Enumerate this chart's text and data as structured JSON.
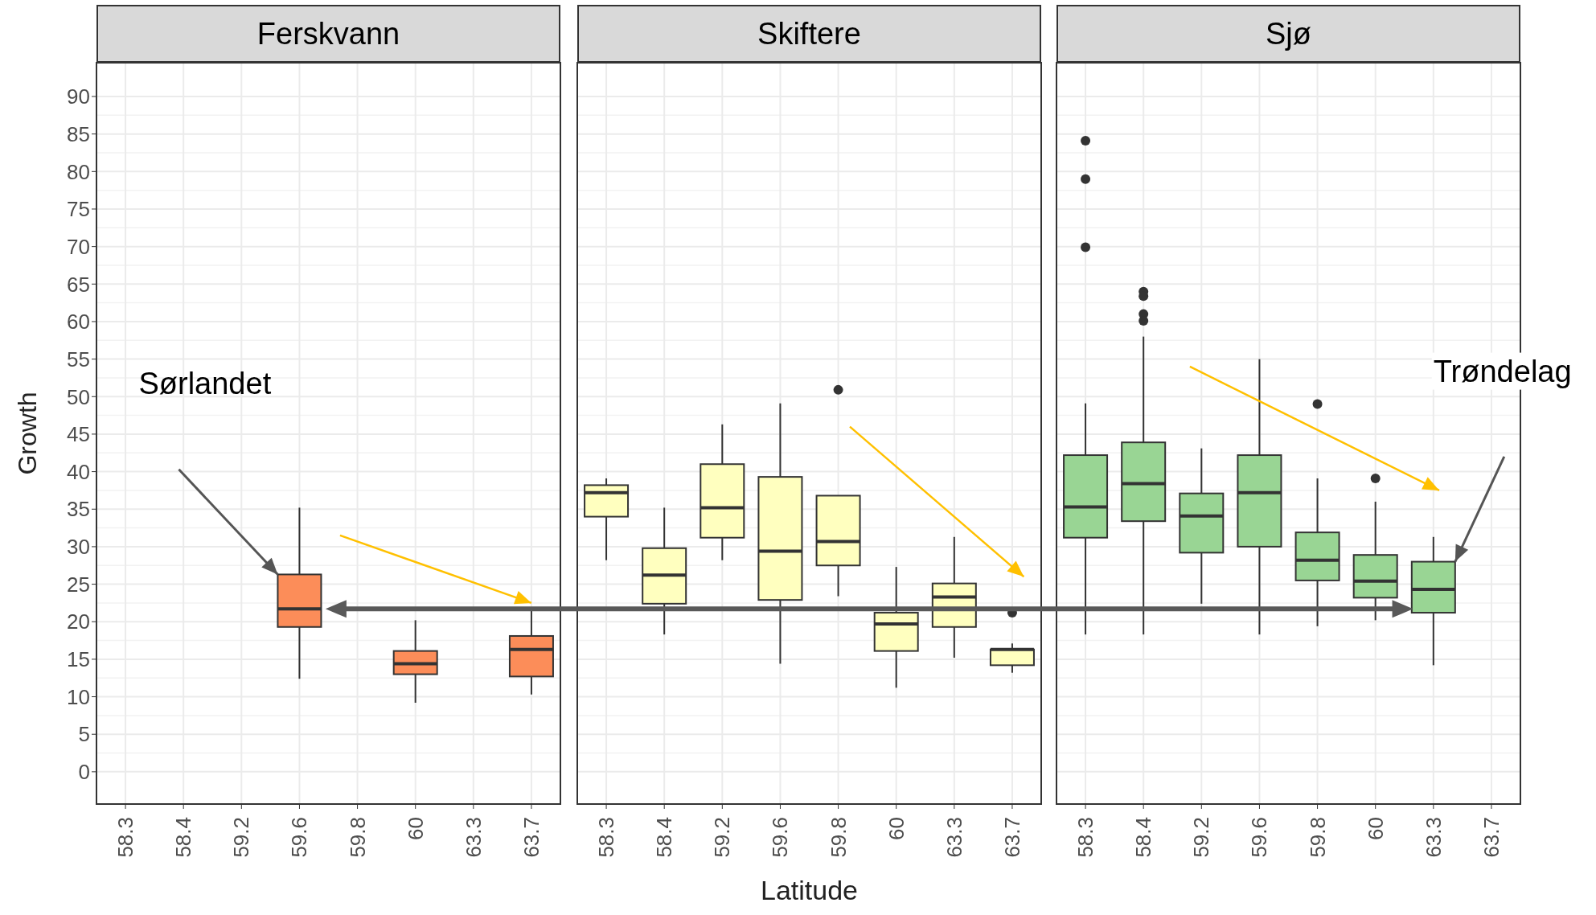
{
  "chart_data": [
    {
      "type": "box",
      "title": "Ferskvann",
      "ylabel": "Growth",
      "color": "#fc8d59",
      "grid": true,
      "ylim": [
        -4.3,
        94.5
      ],
      "yticks": [
        0,
        5,
        10,
        15,
        20,
        25,
        30,
        35,
        40,
        45,
        50,
        55,
        60,
        65,
        70,
        75,
        80,
        85,
        90
      ],
      "categories": [
        "58.3",
        "58.4",
        "59.2",
        "59.6",
        "59.8",
        "60",
        "63.3",
        "63.7"
      ],
      "boxes": [
        null,
        null,
        null,
        {
          "low": 12.4,
          "q1": 19.3,
          "median": 21.7,
          "q3": 26.3,
          "high": 35.2
        },
        null,
        {
          "low": 9.2,
          "q1": 13.0,
          "median": 14.4,
          "q3": 16.1,
          "high": 20.2
        },
        null,
        {
          "low": 10.3,
          "q1": 12.7,
          "median": 16.3,
          "q3": 18.1,
          "high": 21.8
        }
      ],
      "annotations": [
        "Sørlandet"
      ]
    },
    {
      "type": "box",
      "title": "Skiftere",
      "xlabel": "Latitude",
      "color": "#ffffbf",
      "grid": true,
      "tick_labels": "x",
      "ylim": [
        -4.3,
        94.5
      ],
      "yticks": [
        0,
        5,
        10,
        15,
        20,
        25,
        30,
        35,
        40,
        45,
        50,
        55,
        60,
        65,
        70,
        75,
        80,
        85,
        90
      ],
      "categories": [
        "58.3",
        "58.4",
        "59.2",
        "59.6",
        "59.8",
        "60",
        "63.3",
        "63.7"
      ],
      "boxes": [
        {
          "low": 28.2,
          "q1": 34.0,
          "median": 37.2,
          "q3": 38.2,
          "high": 39.1
        },
        {
          "low": 18.3,
          "q1": 22.4,
          "median": 26.2,
          "q3": 29.8,
          "high": 35.2
        },
        {
          "low": 28.2,
          "q1": 31.2,
          "median": 35.2,
          "q3": 41.0,
          "high": 46.3
        },
        {
          "low": 14.4,
          "q1": 22.9,
          "median": 29.4,
          "q3": 39.3,
          "high": 49.1
        },
        {
          "low": 23.4,
          "q1": 27.5,
          "median": 30.7,
          "q3": 36.8,
          "high": 36.8,
          "outliers": [
            50.9
          ]
        },
        {
          "low": 11.2,
          "q1": 16.1,
          "median": 19.7,
          "q3": 21.2,
          "high": 27.3
        },
        {
          "low": 15.2,
          "q1": 19.3,
          "median": 23.3,
          "q3": 25.1,
          "high": 31.3
        },
        {
          "low": 13.2,
          "q1": 14.2,
          "median": 16.3,
          "q3": 16.3,
          "high": 17.1,
          "outliers": [
            21.2
          ]
        }
      ]
    },
    {
      "type": "box",
      "title": "Sjø",
      "color": "#99d594",
      "grid": true,
      "tick_labels": "x",
      "ylim": [
        -4.3,
        94.5
      ],
      "yticks": [
        0,
        5,
        10,
        15,
        20,
        25,
        30,
        35,
        40,
        45,
        50,
        55,
        60,
        65,
        70,
        75,
        80,
        85,
        90
      ],
      "categories": [
        "58.3",
        "58.4",
        "59.2",
        "59.6",
        "59.8",
        "60",
        "63.3",
        "63.7"
      ],
      "boxes": [
        {
          "low": 18.3,
          "q1": 31.2,
          "median": 35.3,
          "q3": 42.2,
          "high": 49.1,
          "outliers": [
            84.1,
            79.0,
            69.9
          ]
        },
        {
          "low": 18.3,
          "q1": 33.4,
          "median": 38.4,
          "q3": 43.9,
          "high": 58.0,
          "outliers": [
            64.0,
            63.4,
            61.0,
            60.1
          ]
        },
        {
          "low": 22.4,
          "q1": 29.2,
          "median": 34.1,
          "q3": 37.1,
          "high": 43.1
        },
        {
          "low": 18.3,
          "q1": 30.0,
          "median": 37.2,
          "q3": 42.2,
          "high": 55.0
        },
        {
          "low": 19.4,
          "q1": 25.5,
          "median": 28.2,
          "q3": 31.9,
          "high": 39.1,
          "outliers": [
            49.0
          ]
        },
        {
          "low": 20.2,
          "q1": 23.2,
          "median": 25.4,
          "q3": 28.9,
          "high": 36.0,
          "outliers": [
            39.1
          ]
        },
        {
          "low": 14.2,
          "q1": 21.2,
          "median": 24.3,
          "q3": 28.0,
          "high": 31.3
        },
        null
      ],
      "annotations": [
        "Trøndelag"
      ]
    }
  ]
}
